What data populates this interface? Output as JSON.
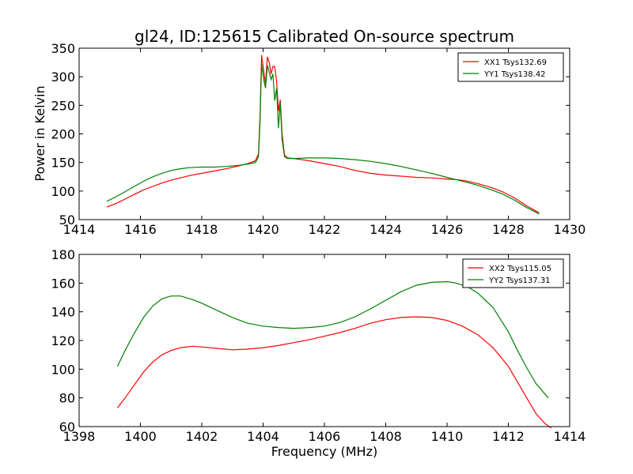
{
  "figure": {
    "title": "gl24, ID:125615 Calibrated On-source spectrum",
    "ylabel": "Power in Kelvin",
    "xlabel": "Frequency (MHz)"
  },
  "chart_data": [
    {
      "type": "line",
      "title": "gl24, ID:125615 Calibrated On-source spectrum",
      "xlabel": "",
      "ylabel": "Power in Kelvin",
      "xlim": [
        1414,
        1430
      ],
      "ylim": [
        50,
        350
      ],
      "xticks": [
        1414,
        1416,
        1418,
        1420,
        1422,
        1424,
        1426,
        1428,
        1430
      ],
      "yticks": [
        50,
        100,
        150,
        200,
        250,
        300,
        350
      ],
      "grid": false,
      "legend_position": "top-right",
      "series": [
        {
          "name": "XX1 Tsys132.69",
          "color": "#ff0000",
          "points": [
            [
              1414.9,
              72
            ],
            [
              1415.2,
              78
            ],
            [
              1415.5,
              86
            ],
            [
              1415.8,
              94
            ],
            [
              1416.1,
              102
            ],
            [
              1416.4,
              108
            ],
            [
              1416.7,
              114
            ],
            [
              1417.0,
              119
            ],
            [
              1417.3,
              123
            ],
            [
              1417.6,
              127
            ],
            [
              1418.0,
              131
            ],
            [
              1418.4,
              135
            ],
            [
              1418.8,
              139
            ],
            [
              1419.2,
              144
            ],
            [
              1419.5,
              148
            ],
            [
              1419.75,
              153
            ],
            [
              1419.85,
              165
            ],
            [
              1419.9,
              230
            ],
            [
              1419.95,
              338
            ],
            [
              1420.02,
              310
            ],
            [
              1420.08,
              288
            ],
            [
              1420.14,
              335
            ],
            [
              1420.2,
              325
            ],
            [
              1420.26,
              305
            ],
            [
              1420.32,
              318
            ],
            [
              1420.38,
              318
            ],
            [
              1420.44,
              292
            ],
            [
              1420.5,
              240
            ],
            [
              1420.56,
              260
            ],
            [
              1420.62,
              200
            ],
            [
              1420.7,
              163
            ],
            [
              1420.8,
              158
            ],
            [
              1421.0,
              157
            ],
            [
              1421.5,
              153
            ],
            [
              1422.0,
              148
            ],
            [
              1422.5,
              143
            ],
            [
              1423.0,
              136
            ],
            [
              1423.5,
              131
            ],
            [
              1424.0,
              128
            ],
            [
              1424.5,
              126
            ],
            [
              1425.0,
              124
            ],
            [
              1425.5,
              123
            ],
            [
              1426.0,
              121
            ],
            [
              1426.3,
              120
            ],
            [
              1426.6,
              118
            ],
            [
              1427.0,
              113
            ],
            [
              1427.4,
              107
            ],
            [
              1427.8,
              99
            ],
            [
              1428.2,
              88
            ],
            [
              1428.6,
              74
            ],
            [
              1429.0,
              62
            ]
          ]
        },
        {
          "name": "YY1 Tsys138.42",
          "color": "#008000",
          "points": [
            [
              1414.9,
              82
            ],
            [
              1415.2,
              90
            ],
            [
              1415.5,
              99
            ],
            [
              1415.8,
              108
            ],
            [
              1416.1,
              117
            ],
            [
              1416.4,
              125
            ],
            [
              1416.7,
              131
            ],
            [
              1417.0,
              136
            ],
            [
              1417.3,
              139
            ],
            [
              1417.6,
              141
            ],
            [
              1418.0,
              142
            ],
            [
              1418.4,
              142
            ],
            [
              1418.8,
              143
            ],
            [
              1419.2,
              145
            ],
            [
              1419.5,
              147
            ],
            [
              1419.75,
              150
            ],
            [
              1419.85,
              160
            ],
            [
              1419.9,
              220
            ],
            [
              1419.95,
              322
            ],
            [
              1420.02,
              295
            ],
            [
              1420.08,
              280
            ],
            [
              1420.14,
              320
            ],
            [
              1420.2,
              308
            ],
            [
              1420.26,
              295
            ],
            [
              1420.32,
              305
            ],
            [
              1420.38,
              258
            ],
            [
              1420.44,
              280
            ],
            [
              1420.5,
              210
            ],
            [
              1420.56,
              255
            ],
            [
              1420.62,
              190
            ],
            [
              1420.7,
              160
            ],
            [
              1420.8,
              157
            ],
            [
              1421.0,
              157
            ],
            [
              1421.5,
              158
            ],
            [
              1422.0,
              158
            ],
            [
              1422.5,
              157
            ],
            [
              1423.0,
              155
            ],
            [
              1423.5,
              152
            ],
            [
              1424.0,
              148
            ],
            [
              1424.5,
              143
            ],
            [
              1425.0,
              137
            ],
            [
              1425.5,
              131
            ],
            [
              1426.0,
              124
            ],
            [
              1426.3,
              120
            ],
            [
              1426.6,
              116
            ],
            [
              1427.0,
              110
            ],
            [
              1427.4,
              103
            ],
            [
              1427.8,
              95
            ],
            [
              1428.2,
              84
            ],
            [
              1428.6,
              71
            ],
            [
              1429.0,
              60
            ]
          ]
        }
      ]
    },
    {
      "type": "line",
      "title": "",
      "xlabel": "Frequency (MHz)",
      "ylabel": "",
      "xlim": [
        1398,
        1414
      ],
      "ylim": [
        60,
        180
      ],
      "xticks": [
        1398,
        1400,
        1402,
        1404,
        1406,
        1408,
        1410,
        1412,
        1414
      ],
      "yticks": [
        60,
        80,
        100,
        120,
        140,
        160,
        180
      ],
      "grid": false,
      "legend_position": "top-right",
      "series": [
        {
          "name": "XX2 Tsys115.05",
          "color": "#ff0000",
          "points": [
            [
              1399.25,
              73
            ],
            [
              1399.5,
              80
            ],
            [
              1399.8,
              89
            ],
            [
              1400.1,
              98
            ],
            [
              1400.4,
              105
            ],
            [
              1400.7,
              110
            ],
            [
              1401.0,
              113
            ],
            [
              1401.3,
              115
            ],
            [
              1401.7,
              116
            ],
            [
              1402.0,
              115.5
            ],
            [
              1402.5,
              114.5
            ],
            [
              1403.0,
              113.5
            ],
            [
              1403.5,
              114
            ],
            [
              1404.0,
              115
            ],
            [
              1404.5,
              116.5
            ],
            [
              1405.0,
              118.5
            ],
            [
              1405.5,
              120.5
            ],
            [
              1406.0,
              123
            ],
            [
              1406.5,
              125.5
            ],
            [
              1407.0,
              128.5
            ],
            [
              1407.5,
              132
            ],
            [
              1408.0,
              134.5
            ],
            [
              1408.5,
              136
            ],
            [
              1409.0,
              136.5
            ],
            [
              1409.5,
              136
            ],
            [
              1410.0,
              134
            ],
            [
              1410.5,
              130
            ],
            [
              1411.0,
              124
            ],
            [
              1411.5,
              115
            ],
            [
              1412.0,
              102
            ],
            [
              1412.3,
              91
            ],
            [
              1412.6,
              80
            ],
            [
              1412.9,
              69
            ],
            [
              1413.2,
              62
            ],
            [
              1413.4,
              59
            ]
          ]
        },
        {
          "name": "YY2 Tsys137.31",
          "color": "#008000",
          "points": [
            [
              1399.25,
              102
            ],
            [
              1399.5,
              113
            ],
            [
              1399.8,
              125
            ],
            [
              1400.1,
              136
            ],
            [
              1400.4,
              144
            ],
            [
              1400.7,
              149
            ],
            [
              1401.0,
              151
            ],
            [
              1401.3,
              151
            ],
            [
              1401.7,
              148.5
            ],
            [
              1402.0,
              146
            ],
            [
              1402.5,
              141
            ],
            [
              1403.0,
              136
            ],
            [
              1403.5,
              132
            ],
            [
              1404.0,
              130
            ],
            [
              1404.5,
              129
            ],
            [
              1405.0,
              128.5
            ],
            [
              1405.5,
              129
            ],
            [
              1406.0,
              130
            ],
            [
              1406.5,
              132.5
            ],
            [
              1407.0,
              136.5
            ],
            [
              1407.5,
              142
            ],
            [
              1408.0,
              148
            ],
            [
              1408.5,
              154
            ],
            [
              1409.0,
              158.5
            ],
            [
              1409.5,
              160.5
            ],
            [
              1410.0,
              161
            ],
            [
              1410.3,
              160
            ],
            [
              1410.7,
              157
            ],
            [
              1411.0,
              153
            ],
            [
              1411.5,
              143
            ],
            [
              1412.0,
              126
            ],
            [
              1412.3,
              113
            ],
            [
              1412.6,
              101
            ],
            [
              1412.9,
              90
            ],
            [
              1413.3,
              80
            ]
          ]
        }
      ]
    }
  ]
}
